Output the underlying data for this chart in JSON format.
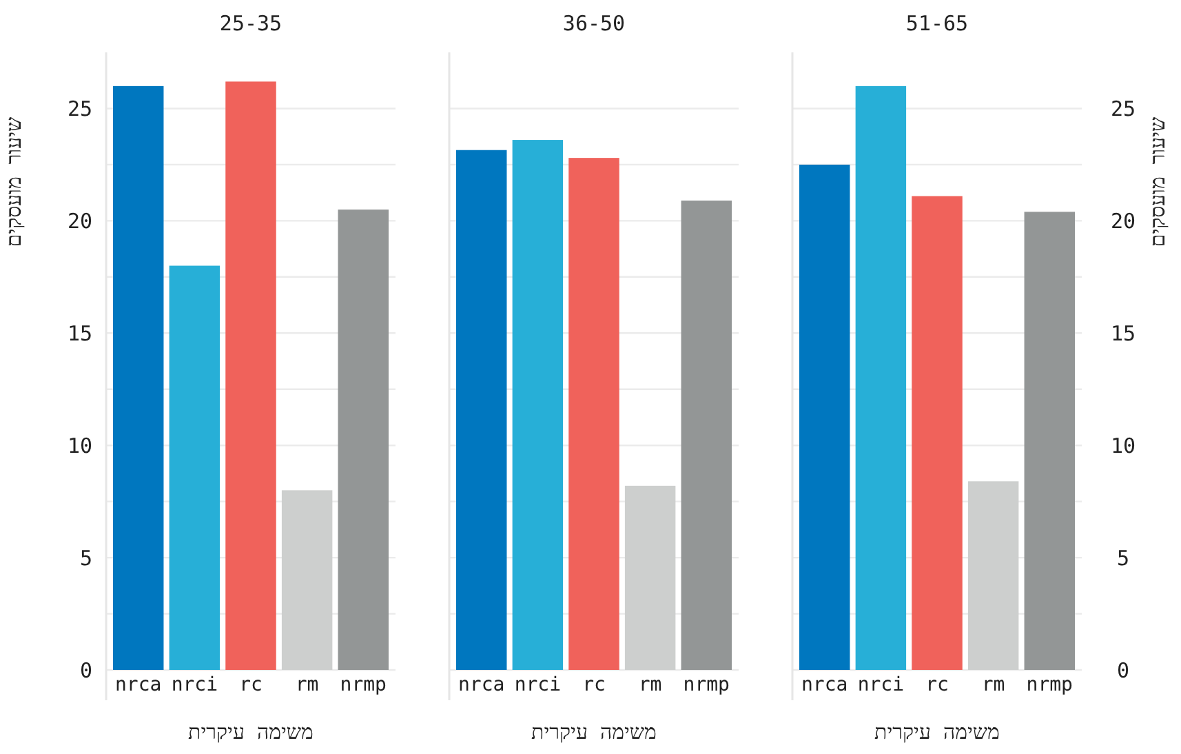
{
  "chart_data": [
    {
      "type": "bar",
      "title": "25-35",
      "xlabel": "משימה עיקרית",
      "ylabel": "שיעור מועסקים",
      "categories": [
        "nrca",
        "nrci",
        "rc",
        "rm",
        "nrmp"
      ],
      "colors": [
        "#0077bf",
        "#27afd7",
        "#f0625b",
        "#cdcfce",
        "#939696"
      ],
      "values": [
        26.0,
        18.0,
        26.2,
        8.0,
        20.5
      ],
      "ylim": [
        0,
        27.5
      ],
      "yticks": [
        0,
        {
          "value": 2.5,
          "label": null
        },
        5,
        {
          "value": 7.5,
          "label": null
        },
        10,
        {
          "value": 12.5,
          "label": null
        },
        15,
        {
          "value": 17.5,
          "label": null
        },
        20,
        {
          "value": 22.5,
          "label": null
        },
        25
      ],
      "grid": "y"
    },
    {
      "type": "bar",
      "title": "36-50",
      "xlabel": "משימה עיקרית",
      "categories": [
        "nrca",
        "nrci",
        "rc",
        "rm",
        "nrmp"
      ],
      "colors": [
        "#0077bf",
        "#27afd7",
        "#f0625b",
        "#cdcfce",
        "#939696"
      ],
      "values": [
        23.15,
        23.6,
        22.8,
        8.2,
        20.9
      ],
      "ylim": [
        0,
        27.5
      ],
      "yticks": [
        0,
        {
          "value": 2.5,
          "label": null
        },
        5,
        {
          "value": 7.5,
          "label": null
        },
        10,
        {
          "value": 12.5,
          "label": null
        },
        15,
        {
          "value": 17.5,
          "label": null
        },
        20,
        {
          "value": 22.5,
          "label": null
        },
        25
      ],
      "grid": "y",
      "tick_labels": "x"
    },
    {
      "type": "bar",
      "title": "51-65",
      "xlabel": "משימה עיקרית",
      "y2label": "שיעור מועסקים",
      "categories": [
        "nrca",
        "nrci",
        "rc",
        "rm",
        "nrmp"
      ],
      "colors": [
        "#0077bf",
        "#27afd7",
        "#f0625b",
        "#cdcfce",
        "#939696"
      ],
      "series": [
        {
          "axis": "y2",
          "values": [
            22.5,
            26.0,
            21.1,
            8.4,
            20.4
          ]
        }
      ],
      "y2lim": [
        0,
        27.5
      ],
      "y2ticks": [
        0,
        {
          "value": 2.5,
          "label": null
        },
        5,
        {
          "value": 7.5,
          "label": null
        },
        10,
        {
          "value": 12.5,
          "label": null
        },
        15,
        {
          "value": 17.5,
          "label": null
        },
        20,
        {
          "value": 22.5,
          "label": null
        },
        25
      ],
      "grid": "y"
    }
  ]
}
